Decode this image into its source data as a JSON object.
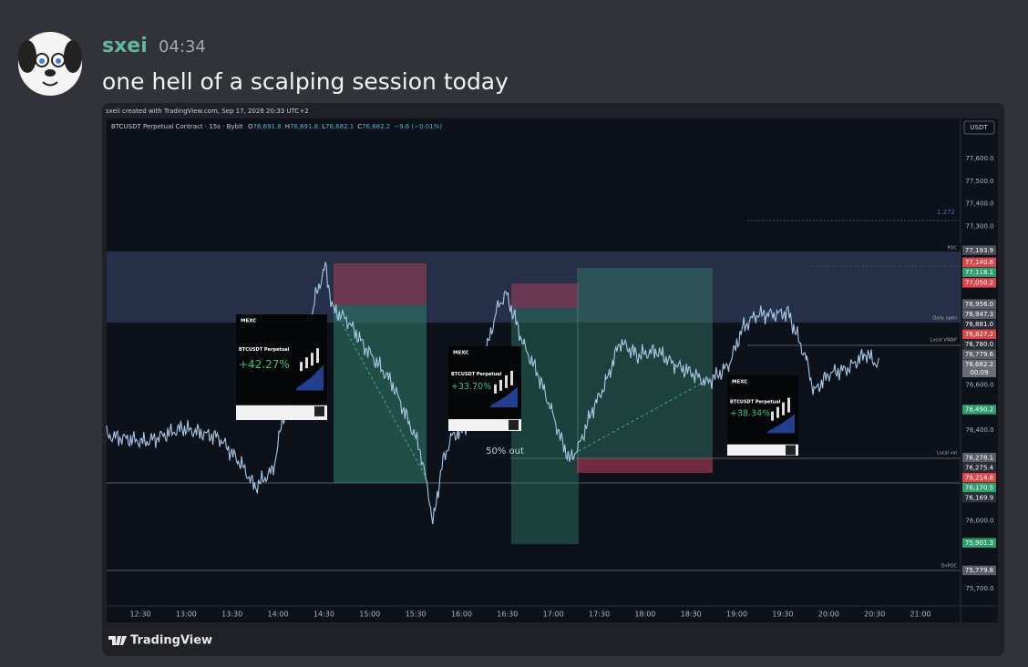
{
  "message": {
    "author": "sxei",
    "timestamp": "04:34",
    "text": "one hell of a scalping session today"
  },
  "embed": {
    "attribution": "sxeii created with TradingView.com, Sep 17, 2026 20:33 UTC+2",
    "symbol": "BTCUSDT Perpetual Contract · 15s · Bybit",
    "ohlc": [
      {
        "key": "O",
        "value": "76,691.8"
      },
      {
        "key": "H",
        "value": "76,691.8"
      },
      {
        "key": "L",
        "value": "76,682.1"
      },
      {
        "key": "C",
        "value": "76,682.2"
      }
    ],
    "change": "−9.6 (−0.01%)",
    "currency": "USDT",
    "y_axis": [
      {
        "value": 77600,
        "label": "77,600.0"
      },
      {
        "value": 77500,
        "label": "77,500.0"
      },
      {
        "value": 77400,
        "label": "77,400.0"
      },
      {
        "value": 77300,
        "label": "77,300.0"
      },
      {
        "value": 76600,
        "label": "76,600.0"
      },
      {
        "value": 76400,
        "label": "76,400.0"
      },
      {
        "value": 76000,
        "label": "76,000.0"
      },
      {
        "value": 75700,
        "label": "75,700.0"
      }
    ],
    "price_tags": [
      {
        "value": 77193.9,
        "label": "77,193.9",
        "color": "#4a4d55"
      },
      {
        "value": 77140.8,
        "label": "77,140.8",
        "color": "#d9474a"
      },
      {
        "value": 77118.1,
        "label": "77,118.1",
        "color": "#2f9e6e"
      },
      {
        "value": 77050.2,
        "label": "77,050.2",
        "color": "#d9474a"
      },
      {
        "value": 76956.0,
        "label": "76,956.0",
        "color": "#5a5d66"
      },
      {
        "value": 76947.3,
        "label": "76,947.3",
        "color": "#5a5d66"
      },
      {
        "value": 76881.0,
        "label": "76,881.0",
        "color": "#2a2e39"
      },
      {
        "value": 76827.2,
        "label": "76,827.2",
        "color": "#d9474a"
      },
      {
        "value": 76780.0,
        "label": "76,780.0",
        "color": "#2a2e39"
      },
      {
        "value": 76779.6,
        "label": "76,779.6",
        "color": "#5a5d66"
      },
      {
        "value": 76682.2,
        "label": "76,682.2",
        "color": "#6a6d75",
        "countdown": "00:09"
      },
      {
        "value": 76490.2,
        "label": "76,490.2",
        "color": "#2f9e6e"
      },
      {
        "value": 76278.1,
        "label": "76,278.1",
        "color": "#5a5d66"
      },
      {
        "value": 76275.4,
        "label": "76,275.4",
        "color": "#2a2e39"
      },
      {
        "value": 76214.8,
        "label": "76,214.8",
        "color": "#d9474a"
      },
      {
        "value": 76170.5,
        "label": "76,170.5",
        "color": "#2f9e6e"
      },
      {
        "value": 76169.9,
        "label": "76,169.9",
        "color": "#2a2e39"
      },
      {
        "value": 75901.3,
        "label": "75,901.3",
        "color": "#2f9e6e"
      },
      {
        "value": 75779.8,
        "label": "75,779.8",
        "color": "#5a5d66"
      }
    ],
    "time_axis": [
      "12:30",
      "13:00",
      "13:30",
      "14:00",
      "14:30",
      "15:00",
      "15:30",
      "16:00",
      "16:30",
      "17:00",
      "17:30",
      "18:00",
      "18:30",
      "19:00",
      "19:30",
      "20:00",
      "20:30",
      "21:00"
    ],
    "annotations": {
      "fib": "1.272",
      "poc": "POC",
      "daily_open": "Daily open",
      "local_vwap": "Local VWAP",
      "local_val": "Local val",
      "dnpoc": "DnPOC",
      "partial": "50% out"
    },
    "cards": [
      {
        "exchange": "MEXC",
        "pair": "BTCUSDT Perpetual",
        "pnl": "+42.27%"
      },
      {
        "exchange": "MEXC",
        "pair": "BTCUSDT Perpetual",
        "pnl": "+33.70%"
      },
      {
        "exchange": "MEXC",
        "pair": "BTCUSDT Perpetual",
        "pnl": "+38.34%"
      }
    ],
    "footer": "TradingView"
  }
}
